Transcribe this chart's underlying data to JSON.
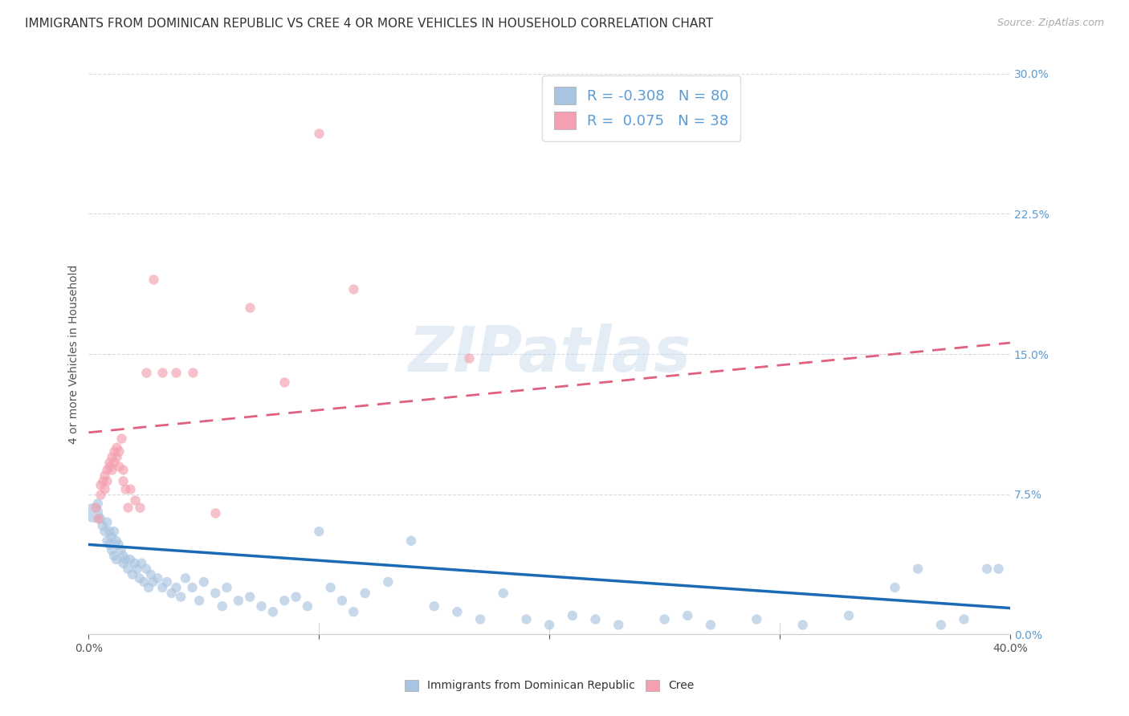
{
  "title": "IMMIGRANTS FROM DOMINICAN REPUBLIC VS CREE 4 OR MORE VEHICLES IN HOUSEHOLD CORRELATION CHART",
  "source": "Source: ZipAtlas.com",
  "ylabel": "4 or more Vehicles in Household",
  "x_label_bottom": "Immigrants from Dominican Republic",
  "x_label_cree": "Cree",
  "xlim": [
    0.0,
    0.4
  ],
  "ylim": [
    0.0,
    0.3
  ],
  "xtick_positions": [
    0.0,
    0.1,
    0.2,
    0.3,
    0.4
  ],
  "xtick_edge_labels": {
    "0": "0.0%",
    "4": "40.0%"
  },
  "yticks_right": [
    0.0,
    0.075,
    0.15,
    0.225,
    0.3
  ],
  "ytick_right_labels": [
    "0.0%",
    "7.5%",
    "15.0%",
    "22.5%",
    "30.0%"
  ],
  "blue_R": -0.308,
  "blue_N": 80,
  "pink_R": 0.075,
  "pink_N": 38,
  "blue_color": "#a8c4e0",
  "pink_color": "#f4a0b0",
  "blue_line_color": "#1a6ab5",
  "pink_line_color": "#e06080",
  "watermark": "ZIPatlas",
  "background_color": "#ffffff",
  "grid_color": "#d8d8e8",
  "title_fontsize": 11,
  "axis_label_fontsize": 10,
  "tick_fontsize": 10,
  "legend_fontsize": 13,
  "blue_scatter_x": [
    0.002,
    0.004,
    0.005,
    0.006,
    0.007,
    0.008,
    0.008,
    0.009,
    0.009,
    0.01,
    0.01,
    0.011,
    0.011,
    0.012,
    0.012,
    0.013,
    0.014,
    0.015,
    0.015,
    0.016,
    0.017,
    0.018,
    0.019,
    0.02,
    0.021,
    0.022,
    0.023,
    0.024,
    0.025,
    0.026,
    0.027,
    0.028,
    0.03,
    0.032,
    0.034,
    0.036,
    0.038,
    0.04,
    0.042,
    0.045,
    0.048,
    0.05,
    0.055,
    0.058,
    0.06,
    0.065,
    0.07,
    0.075,
    0.08,
    0.085,
    0.09,
    0.095,
    0.1,
    0.105,
    0.11,
    0.115,
    0.12,
    0.13,
    0.14,
    0.15,
    0.16,
    0.17,
    0.18,
    0.19,
    0.2,
    0.21,
    0.22,
    0.23,
    0.25,
    0.26,
    0.27,
    0.29,
    0.31,
    0.33,
    0.35,
    0.36,
    0.37,
    0.38,
    0.39,
    0.395
  ],
  "blue_scatter_y": [
    0.065,
    0.07,
    0.062,
    0.058,
    0.055,
    0.06,
    0.05,
    0.055,
    0.048,
    0.052,
    0.045,
    0.055,
    0.042,
    0.05,
    0.04,
    0.048,
    0.045,
    0.042,
    0.038,
    0.04,
    0.035,
    0.04,
    0.032,
    0.038,
    0.035,
    0.03,
    0.038,
    0.028,
    0.035,
    0.025,
    0.032,
    0.028,
    0.03,
    0.025,
    0.028,
    0.022,
    0.025,
    0.02,
    0.03,
    0.025,
    0.018,
    0.028,
    0.022,
    0.015,
    0.025,
    0.018,
    0.02,
    0.015,
    0.012,
    0.018,
    0.02,
    0.015,
    0.055,
    0.025,
    0.018,
    0.012,
    0.022,
    0.028,
    0.05,
    0.015,
    0.012,
    0.008,
    0.022,
    0.008,
    0.005,
    0.01,
    0.008,
    0.005,
    0.008,
    0.01,
    0.005,
    0.008,
    0.005,
    0.01,
    0.025,
    0.035,
    0.005,
    0.008,
    0.035,
    0.035
  ],
  "blue_scatter_size": [
    300,
    80,
    80,
    80,
    80,
    80,
    80,
    80,
    80,
    80,
    80,
    80,
    80,
    80,
    80,
    80,
    80,
    80,
    80,
    80,
    80,
    80,
    80,
    80,
    80,
    80,
    80,
    80,
    80,
    80,
    80,
    80,
    80,
    80,
    80,
    80,
    80,
    80,
    80,
    80,
    80,
    80,
    80,
    80,
    80,
    80,
    80,
    80,
    80,
    80,
    80,
    80,
    80,
    80,
    80,
    80,
    80,
    80,
    80,
    80,
    80,
    80,
    80,
    80,
    80,
    80,
    80,
    80,
    80,
    80,
    80,
    80,
    80,
    80,
    80,
    80,
    80,
    80,
    80,
    80
  ],
  "pink_scatter_x": [
    0.003,
    0.004,
    0.005,
    0.005,
    0.006,
    0.007,
    0.007,
    0.008,
    0.008,
    0.009,
    0.009,
    0.01,
    0.01,
    0.011,
    0.011,
    0.012,
    0.012,
    0.013,
    0.013,
    0.014,
    0.015,
    0.015,
    0.016,
    0.017,
    0.018,
    0.02,
    0.022,
    0.025,
    0.028,
    0.032,
    0.038,
    0.045,
    0.055,
    0.07,
    0.085,
    0.1,
    0.115,
    0.165
  ],
  "pink_scatter_y": [
    0.068,
    0.062,
    0.075,
    0.08,
    0.082,
    0.078,
    0.085,
    0.088,
    0.082,
    0.09,
    0.092,
    0.088,
    0.095,
    0.098,
    0.092,
    0.1,
    0.095,
    0.09,
    0.098,
    0.105,
    0.088,
    0.082,
    0.078,
    0.068,
    0.078,
    0.072,
    0.068,
    0.14,
    0.19,
    0.14,
    0.14,
    0.14,
    0.065,
    0.175,
    0.135,
    0.268,
    0.185,
    0.148
  ],
  "blue_line_intercept": 0.048,
  "blue_line_slope": -0.085,
  "pink_line_intercept": 0.108,
  "pink_line_slope": 0.12
}
